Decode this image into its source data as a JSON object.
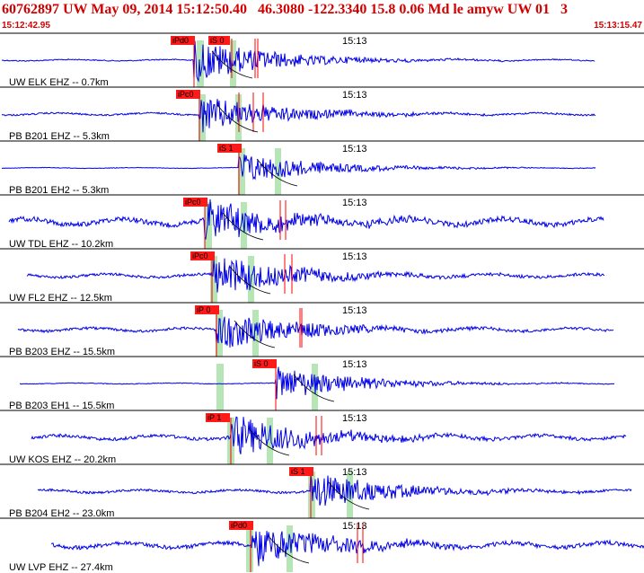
{
  "header": {
    "title": "60762897 UW May 09, 2014 15:12:50.40   46.3080 -122.3340 15.8 0.06 Md le amyw UW 01   3",
    "start_time": "15:12:42.95",
    "end_time": "15:13:15.47"
  },
  "colors": {
    "trace": "#0000e6",
    "pick": "#ff0000",
    "p_window": "#b6e6b6",
    "header_text": "#d40000"
  },
  "channels": [
    {
      "label": "UW ELK EHZ -- 0.7km",
      "tick": "15:13",
      "pick": "iPd0",
      "pick2": "iS 0",
      "noise": 0.12,
      "amp": 1.0
    },
    {
      "label": "PB B201 EHZ -- 5.3km",
      "tick": "15:13",
      "pick": "iPc0",
      "pick2": "",
      "noise": 0.18,
      "amp": 0.9
    },
    {
      "label": "PB B201 EH2 -- 5.3km",
      "tick": "15:13",
      "pick": "iS 1",
      "pick2": "",
      "noise": 0.06,
      "amp": 0.75
    },
    {
      "label": "UW TDL EHZ -- 10.2km",
      "tick": "15:13",
      "pick": "iPc0",
      "pick2": "",
      "noise": 0.55,
      "amp": 1.0
    },
    {
      "label": "UW FL2 EHZ -- 12.5km",
      "tick": "15:13",
      "pick": "iPc0",
      "pick2": "",
      "noise": 0.3,
      "amp": 1.0
    },
    {
      "label": "PB B203 EHZ -- 15.5km",
      "tick": "15:13",
      "pick": "iP 0",
      "pick2": "",
      "noise": 0.28,
      "amp": 1.0
    },
    {
      "label": "PB B203 EH1 -- 15.5km",
      "tick": "15:13",
      "pick": "iS 0",
      "pick2": "",
      "noise": 0.08,
      "amp": 0.8
    },
    {
      "label": "UW KOS EHZ -- 20.2km",
      "tick": "15:13",
      "pick": "iP 1",
      "pick2": "",
      "noise": 0.35,
      "amp": 1.0
    },
    {
      "label": "PB B204 EH2 -- 23.0km",
      "tick": "15:13",
      "pick": "iS 1",
      "pick2": "",
      "noise": 0.25,
      "amp": 0.9
    },
    {
      "label": "UW LVP EHZ -- 27.4km",
      "tick": "15:13",
      "pick": "iPd0",
      "pick2": "",
      "noise": 0.45,
      "amp": 1.0
    }
  ]
}
